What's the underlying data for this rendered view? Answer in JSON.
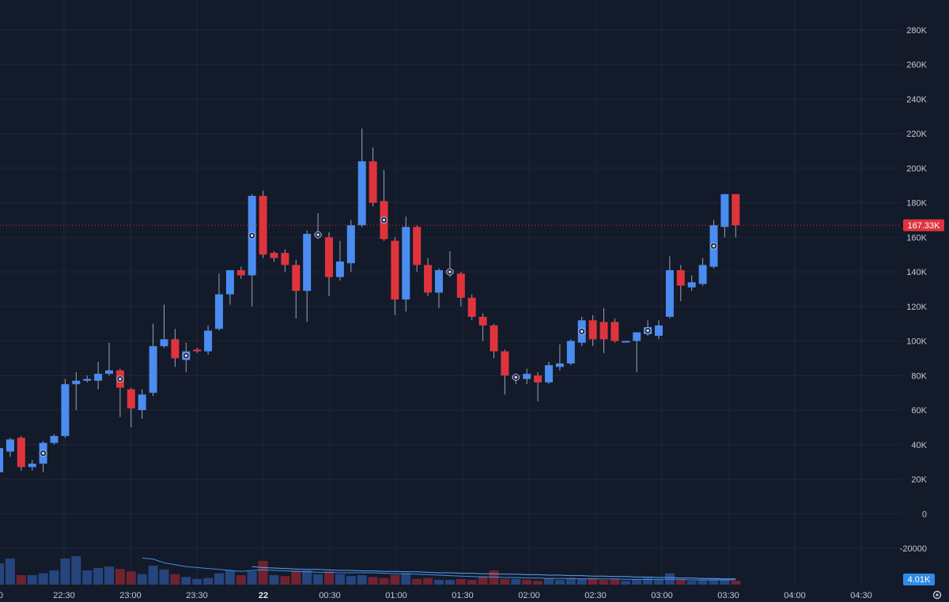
{
  "chart_data": {
    "type": "candlestick",
    "y_ticks": [
      "280K",
      "260K",
      "240K",
      "220K",
      "200K",
      "180K",
      "160K",
      "140K",
      "120K",
      "100K",
      "80K",
      "60K",
      "40K",
      "20K",
      "0",
      "-20000"
    ],
    "ylim": [
      -20000,
      280000
    ],
    "x_ticks": [
      "22:30",
      "23:00",
      "23:30",
      "22",
      "00:30",
      "01:00",
      "01:30",
      "02:00",
      "02:30",
      "03:00",
      "03:30",
      "04:00",
      "04:30"
    ],
    "price_label": "167.33K",
    "volume_label": "4.01K",
    "colors": {
      "up": "#4a8cf0",
      "down": "#e0343c",
      "background": "#131a2a",
      "grid": "#1f2738"
    },
    "candles": [
      {
        "o": 24000,
        "c": 38000,
        "h": 40000,
        "l": 22000
      },
      {
        "o": 36000,
        "c": 43000,
        "h": 44000,
        "l": 33000
      },
      {
        "o": 44000,
        "c": 27000,
        "h": 45000,
        "l": 25000
      },
      {
        "o": 27000,
        "c": 29000,
        "h": 31000,
        "l": 25000
      },
      {
        "o": 29000,
        "c": 41000,
        "h": 42000,
        "l": 24000,
        "marker": true
      },
      {
        "o": 41000,
        "c": 45000,
        "h": 46000,
        "l": 40000
      },
      {
        "o": 45000,
        "c": 75000,
        "h": 78000,
        "l": 44000
      },
      {
        "o": 75000,
        "c": 77000,
        "h": 82000,
        "l": 60000
      },
      {
        "o": 77000,
        "c": 78000,
        "h": 80000,
        "l": 76000
      },
      {
        "o": 77000,
        "c": 81000,
        "h": 88000,
        "l": 72000
      },
      {
        "o": 81000,
        "c": 83000,
        "h": 99000,
        "l": 80000
      },
      {
        "o": 83000,
        "c": 73000,
        "h": 84000,
        "l": 56000,
        "marker": true
      },
      {
        "o": 72000,
        "c": 61000,
        "h": 73000,
        "l": 50000
      },
      {
        "o": 60000,
        "c": 69000,
        "h": 72000,
        "l": 55000
      },
      {
        "o": 70000,
        "c": 97000,
        "h": 110000,
        "l": 68000
      },
      {
        "o": 97000,
        "c": 101000,
        "h": 121000,
        "l": 96000
      },
      {
        "o": 101000,
        "c": 90000,
        "h": 107000,
        "l": 85000
      },
      {
        "o": 89000,
        "c": 94000,
        "h": 99000,
        "l": 82000,
        "marker": true
      },
      {
        "o": 95000,
        "c": 94000,
        "h": 96000,
        "l": 93000
      },
      {
        "o": 94000,
        "c": 106000,
        "h": 109000,
        "l": 92000
      },
      {
        "o": 107000,
        "c": 127000,
        "h": 139000,
        "l": 106000
      },
      {
        "o": 127000,
        "c": 141000,
        "h": 141000,
        "l": 121000
      },
      {
        "o": 141000,
        "c": 138000,
        "h": 143000,
        "l": 136000
      },
      {
        "o": 138000,
        "c": 184000,
        "h": 185000,
        "l": 120000,
        "marker": true
      },
      {
        "o": 184000,
        "c": 150000,
        "h": 187000,
        "l": 148000
      },
      {
        "o": 151000,
        "c": 148000,
        "h": 152000,
        "l": 146000
      },
      {
        "o": 151000,
        "c": 144000,
        "h": 153000,
        "l": 140000
      },
      {
        "o": 144000,
        "c": 129000,
        "h": 147000,
        "l": 113000
      },
      {
        "o": 129000,
        "c": 162000,
        "h": 164000,
        "l": 111000
      },
      {
        "o": 162000,
        "c": 161000,
        "h": 174000,
        "l": 159000,
        "marker": true
      },
      {
        "o": 160000,
        "c": 137000,
        "h": 163000,
        "l": 126000
      },
      {
        "o": 137000,
        "c": 146000,
        "h": 158000,
        "l": 135000
      },
      {
        "o": 145000,
        "c": 167000,
        "h": 170000,
        "l": 140000
      },
      {
        "o": 167000,
        "c": 204000,
        "h": 223000,
        "l": 166000
      },
      {
        "o": 204000,
        "c": 180000,
        "h": 212000,
        "l": 178000
      },
      {
        "o": 181000,
        "c": 159000,
        "h": 199000,
        "l": 158000,
        "marker": true
      },
      {
        "o": 158000,
        "c": 124000,
        "h": 160000,
        "l": 115000
      },
      {
        "o": 124000,
        "c": 166000,
        "h": 172000,
        "l": 117000
      },
      {
        "o": 166000,
        "c": 144000,
        "h": 167000,
        "l": 140000
      },
      {
        "o": 144000,
        "c": 128000,
        "h": 148000,
        "l": 126000
      },
      {
        "o": 128000,
        "c": 141000,
        "h": 142000,
        "l": 119000
      },
      {
        "o": 141000,
        "c": 139000,
        "h": 152000,
        "l": 137000,
        "marker": true
      },
      {
        "o": 139000,
        "c": 125000,
        "h": 140000,
        "l": 120000
      },
      {
        "o": 125000,
        "c": 114000,
        "h": 127000,
        "l": 112000
      },
      {
        "o": 114000,
        "c": 109000,
        "h": 116000,
        "l": 100000
      },
      {
        "o": 109000,
        "c": 94000,
        "h": 110000,
        "l": 90000
      },
      {
        "o": 94000,
        "c": 80000,
        "h": 95000,
        "l": 69000
      },
      {
        "o": 80000,
        "c": 78000,
        "h": 81000,
        "l": 75000,
        "marker": true
      },
      {
        "o": 78000,
        "c": 81000,
        "h": 84000,
        "l": 75000
      },
      {
        "o": 80000,
        "c": 76000,
        "h": 82000,
        "l": 65000
      },
      {
        "o": 76000,
        "c": 86000,
        "h": 88000,
        "l": 75000
      },
      {
        "o": 85000,
        "c": 87000,
        "h": 98000,
        "l": 83000
      },
      {
        "o": 87000,
        "c": 100000,
        "h": 101000,
        "l": 86000
      },
      {
        "o": 99000,
        "c": 112000,
        "h": 114000,
        "l": 97000,
        "marker": true
      },
      {
        "o": 112000,
        "c": 101000,
        "h": 115000,
        "l": 97000
      },
      {
        "o": 111000,
        "c": 101000,
        "h": 119000,
        "l": 93000
      },
      {
        "o": 111000,
        "c": 100000,
        "h": 113000,
        "l": 99000
      },
      {
        "o": 100000,
        "c": 100000,
        "h": 100000,
        "l": 100000
      },
      {
        "o": 100000,
        "c": 105000,
        "h": 105000,
        "l": 82000
      },
      {
        "o": 104000,
        "c": 108000,
        "h": 112000,
        "l": 103000,
        "marker": true
      },
      {
        "o": 103000,
        "c": 109000,
        "h": 112000,
        "l": 101000
      },
      {
        "o": 114000,
        "c": 141000,
        "h": 149000,
        "l": 113000
      },
      {
        "o": 141000,
        "c": 132000,
        "h": 144000,
        "l": 123000
      },
      {
        "o": 131000,
        "c": 134000,
        "h": 138000,
        "l": 129000
      },
      {
        "o": 133000,
        "c": 144000,
        "h": 148000,
        "l": 132000
      },
      {
        "o": 143000,
        "c": 167000,
        "h": 170000,
        "l": 142000,
        "marker": true
      },
      {
        "o": 166000,
        "c": 185000,
        "h": 185000,
        "l": 160000
      },
      {
        "o": 185000,
        "c": 167000,
        "h": 185000,
        "l": 160000
      }
    ],
    "volumes": [
      {
        "v": 0.45,
        "up": true
      },
      {
        "v": 0.55,
        "up": true
      },
      {
        "v": 0.2,
        "up": false
      },
      {
        "v": 0.2,
        "up": true
      },
      {
        "v": 0.24,
        "up": true
      },
      {
        "v": 0.3,
        "up": true
      },
      {
        "v": 0.55,
        "up": true
      },
      {
        "v": 0.6,
        "up": true
      },
      {
        "v": 0.3,
        "up": true
      },
      {
        "v": 0.35,
        "up": true
      },
      {
        "v": 0.38,
        "up": true
      },
      {
        "v": 0.33,
        "up": false
      },
      {
        "v": 0.28,
        "up": false
      },
      {
        "v": 0.22,
        "up": true
      },
      {
        "v": 0.4,
        "up": true
      },
      {
        "v": 0.32,
        "up": true
      },
      {
        "v": 0.22,
        "up": false
      },
      {
        "v": 0.16,
        "up": true
      },
      {
        "v": 0.12,
        "up": true
      },
      {
        "v": 0.14,
        "up": true
      },
      {
        "v": 0.24,
        "up": true
      },
      {
        "v": 0.3,
        "up": true
      },
      {
        "v": 0.2,
        "up": false
      },
      {
        "v": 0.28,
        "up": true
      },
      {
        "v": 0.5,
        "up": false
      },
      {
        "v": 0.2,
        "up": true
      },
      {
        "v": 0.18,
        "up": false
      },
      {
        "v": 0.3,
        "up": false
      },
      {
        "v": 0.3,
        "up": true
      },
      {
        "v": 0.22,
        "up": true
      },
      {
        "v": 0.28,
        "up": false
      },
      {
        "v": 0.22,
        "up": true
      },
      {
        "v": 0.18,
        "up": true
      },
      {
        "v": 0.2,
        "up": true
      },
      {
        "v": 0.16,
        "up": false
      },
      {
        "v": 0.14,
        "up": false
      },
      {
        "v": 0.2,
        "up": false
      },
      {
        "v": 0.24,
        "up": true
      },
      {
        "v": 0.12,
        "up": false
      },
      {
        "v": 0.14,
        "up": false
      },
      {
        "v": 0.1,
        "up": true
      },
      {
        "v": 0.1,
        "up": true
      },
      {
        "v": 0.12,
        "up": false
      },
      {
        "v": 0.1,
        "up": false
      },
      {
        "v": 0.18,
        "up": false
      },
      {
        "v": 0.3,
        "up": false
      },
      {
        "v": 0.12,
        "up": false
      },
      {
        "v": 0.12,
        "up": true
      },
      {
        "v": 0.1,
        "up": false
      },
      {
        "v": 0.08,
        "up": false
      },
      {
        "v": 0.14,
        "up": true
      },
      {
        "v": 0.1,
        "up": true
      },
      {
        "v": 0.14,
        "up": true
      },
      {
        "v": 0.12,
        "up": true
      },
      {
        "v": 0.14,
        "up": false
      },
      {
        "v": 0.1,
        "up": false
      },
      {
        "v": 0.12,
        "up": false
      },
      {
        "v": 0.08,
        "up": true
      },
      {
        "v": 0.12,
        "up": true
      },
      {
        "v": 0.14,
        "up": true
      },
      {
        "v": 0.12,
        "up": true
      },
      {
        "v": 0.24,
        "up": true
      },
      {
        "v": 0.1,
        "up": false
      },
      {
        "v": 0.08,
        "up": true
      },
      {
        "v": 0.1,
        "up": true
      },
      {
        "v": 0.12,
        "up": true
      },
      {
        "v": 0.12,
        "up": true
      },
      {
        "v": 0.08,
        "up": false
      }
    ],
    "volume_ma": [
      null,
      null,
      null,
      null,
      null,
      null,
      null,
      null,
      null,
      null,
      null,
      null,
      null,
      0.56,
      0.54,
      0.46,
      0.42,
      0.38,
      0.36,
      0.34,
      0.32,
      0.3,
      0.28,
      0.3,
      0.31,
      0.3,
      0.29,
      0.28,
      0.27,
      0.26,
      0.26,
      0.25,
      0.25,
      0.25,
      0.25,
      0.24,
      0.23,
      0.23,
      0.22,
      0.21,
      0.2,
      0.19,
      0.18,
      0.17,
      0.16,
      0.16,
      0.15,
      0.15,
      0.14,
      0.14,
      0.13,
      0.13,
      0.13,
      0.12,
      0.12,
      0.12,
      0.12,
      0.11,
      0.11,
      0.11,
      0.11,
      0.11,
      0.11,
      0.1,
      0.1,
      0.1,
      0.1,
      0.1
    ],
    "volume_ma_long": [
      null,
      null,
      null,
      null,
      null,
      null,
      null,
      null,
      null,
      null,
      null,
      null,
      null,
      null,
      null,
      null,
      null,
      null,
      null,
      null,
      null,
      null,
      null,
      0.38,
      0.36,
      0.35,
      0.34,
      0.33,
      0.32,
      0.32,
      0.31,
      0.3,
      0.3,
      0.29,
      0.29,
      0.28,
      0.28,
      0.27,
      0.27,
      0.26,
      0.25,
      0.25,
      0.24,
      0.24,
      0.23,
      0.23,
      0.22,
      0.22,
      0.21,
      0.21,
      0.2,
      0.2,
      0.19,
      0.19,
      0.18,
      0.18,
      0.17,
      0.17,
      0.16,
      0.16,
      0.15,
      0.15,
      0.14,
      0.14,
      0.13,
      0.13,
      0.12,
      0.12
    ]
  }
}
